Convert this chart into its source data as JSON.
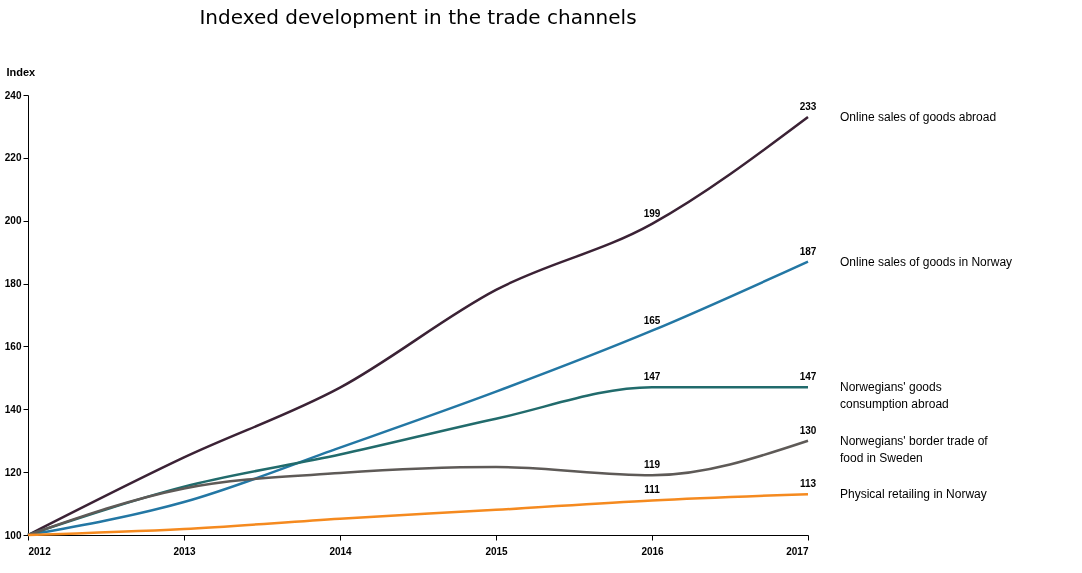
{
  "chart_data": {
    "type": "line",
    "title": "Indexed development in the trade channels",
    "ylabel": "Index",
    "categories": [
      "2012",
      "2013",
      "2014",
      "2015",
      "2016",
      "2017"
    ],
    "series": [
      {
        "name": "Online sales of goods abroad",
        "color": "#3b2235",
        "values": [
          100,
          124.7,
          146.9,
          178,
          199,
          233
        ],
        "value_labels": [
          null,
          null,
          null,
          null,
          "199",
          "233"
        ]
      },
      {
        "name": "Online sales of goods in Norway",
        "color": "#2377a4",
        "values": [
          100,
          110.5,
          127.8,
          145.6,
          165,
          187
        ],
        "value_labels": [
          null,
          null,
          null,
          null,
          "165",
          "187"
        ]
      },
      {
        "name": "Norwegians' goods\nconsumption abroad",
        "color": "#216b6c",
        "values": [
          100,
          115.4,
          125.6,
          137,
          147,
          147
        ],
        "value_labels": [
          null,
          null,
          null,
          null,
          "147",
          "147"
        ]
      },
      {
        "name": "Norwegians' border trade of\nfood in Sweden",
        "color": "#5e5a57",
        "values": [
          100,
          114.8,
          119.7,
          121.6,
          119,
          130
        ],
        "value_labels": [
          null,
          null,
          null,
          null,
          "119",
          "130"
        ]
      },
      {
        "name": "Physical retailing in Norway",
        "color": "#f58a1f",
        "values": [
          100,
          101.9,
          105.2,
          108,
          111,
          113
        ],
        "value_labels": [
          null,
          null,
          null,
          null,
          "111",
          "113"
        ]
      }
    ],
    "ylim": [
      100,
      240
    ],
    "yticks": [
      100,
      120,
      140,
      160,
      180,
      200,
      220,
      240
    ],
    "grid": false,
    "legend": false
  }
}
